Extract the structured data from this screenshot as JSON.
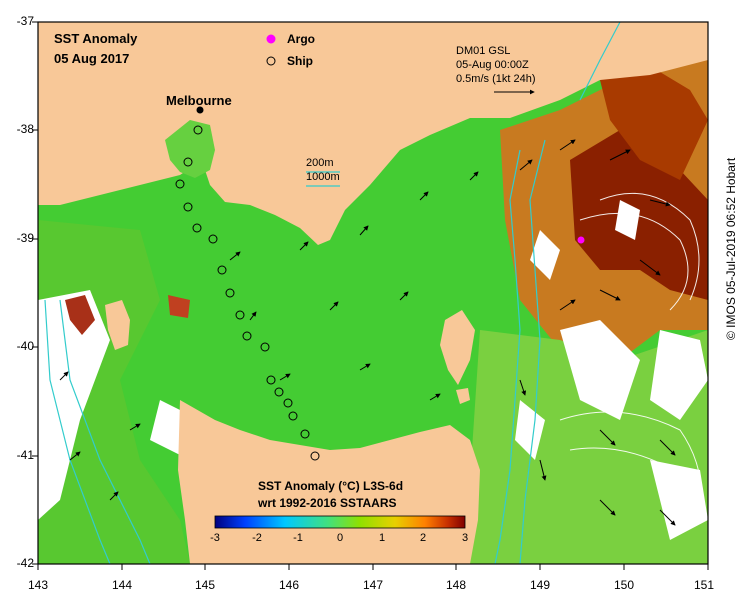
{
  "title": {
    "line1": "SST Anomaly",
    "line2": "05 Aug 2017"
  },
  "place_label": "Melbourne",
  "legend": {
    "argo": "Argo",
    "ship": "Ship"
  },
  "current_info": {
    "line1": "DM01 GSL",
    "line2": "05-Aug 00:00Z",
    "line3": "0.5m/s (1kt 24h)"
  },
  "bathymetry_legend": {
    "contour1": "200m",
    "contour2": "1000m"
  },
  "colorbar": {
    "title_line1": "SST Anomaly (°C) L3S-6d",
    "title_line2": "wrt 1992-2016 SSTAARS",
    "ticks": [
      "-3",
      "-2",
      "-1",
      "0",
      "1",
      "2",
      "3"
    ],
    "colors": [
      "#00007f",
      "#0040ff",
      "#00c8ff",
      "#40e080",
      "#90e000",
      "#e8d000",
      "#ff8000",
      "#c83000",
      "#800000"
    ]
  },
  "axes": {
    "x_ticks": [
      "143",
      "144",
      "145",
      "146",
      "147",
      "148",
      "149",
      "150",
      "151"
    ],
    "y_ticks": [
      "-37",
      "-38",
      "-39",
      "-40",
      "-41",
      "-42"
    ]
  },
  "credit": "© IMOS 05-Jul-2019 06:52 Hobart",
  "colors": {
    "land": "#f8c898",
    "frame": "#000000",
    "argo": "#ff00ff",
    "ship_track": "#000000"
  }
}
